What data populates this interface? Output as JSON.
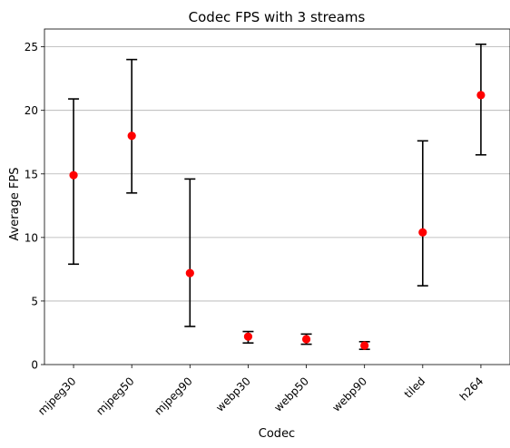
{
  "chart_data": {
    "type": "errorbar",
    "title": "Codec FPS with 3 streams",
    "xlabel": "Codec",
    "ylabel": "Average FPS",
    "categories": [
      "mjpeg30",
      "mjpeg50",
      "mjpeg90",
      "webp30",
      "webp50",
      "webp90",
      "tiled",
      "h264"
    ],
    "series": [
      {
        "values": [
          14.9,
          18.0,
          7.2,
          2.2,
          2.0,
          1.5,
          10.4,
          21.2
        ],
        "err_low": [
          7.9,
          13.5,
          3.0,
          1.7,
          1.6,
          1.2,
          6.2,
          16.5
        ],
        "err_high": [
          20.9,
          24.0,
          14.6,
          2.6,
          2.4,
          1.8,
          17.6,
          25.2
        ],
        "marker_color": "#ff0000",
        "errorbar_color": "#000000"
      }
    ],
    "ylim": [
      0,
      26.4
    ],
    "yticks": [
      0,
      5,
      10,
      15,
      20,
      25
    ],
    "grid": "y",
    "legend": "none",
    "xtick_rotation": 45
  }
}
